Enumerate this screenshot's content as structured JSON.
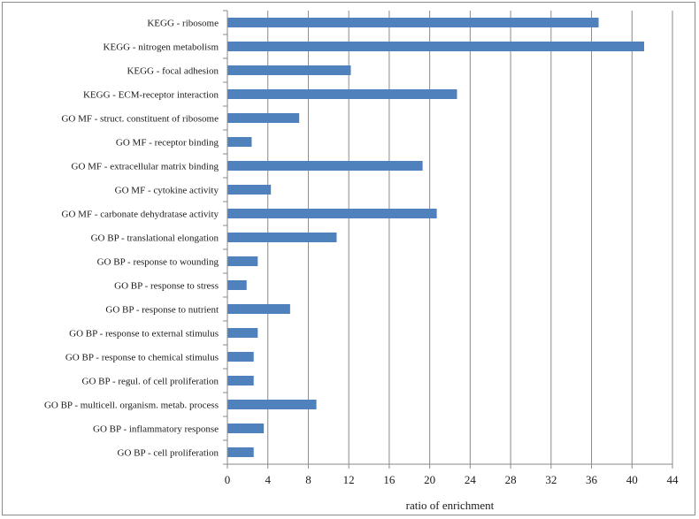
{
  "chart_data": {
    "type": "bar",
    "orientation": "horizontal",
    "title": "",
    "xlabel": "ratio of enrichment",
    "ylabel": "",
    "xlim": [
      0,
      44
    ],
    "x_ticks": [
      0,
      4,
      8,
      12,
      16,
      20,
      24,
      28,
      32,
      36,
      40,
      44
    ],
    "grid": "vertical",
    "legend": "none",
    "bar_color": "#4f81bd",
    "categories": [
      "KEGG - ribosome",
      "KEGG - nitrogen metabolism",
      "KEGG - focal adhesion",
      "KEGG - ECM-receptor interaction",
      "GO MF - struct. constituent of ribosome",
      "GO MF - receptor binding",
      "GO MF - extracellular matrix binding",
      "GO MF - cytokine activity",
      "GO MF - carbonate dehydratase activity",
      "GO BP - translational elongation",
      "GO BP - response to wounding",
      "GO BP - response to stress",
      "GO BP - response to nutrient",
      "GO BP - response to external stimulus",
      "GO  BP - response to chemical stimulus",
      "GO BP - regul. of cell proliferation",
      "GO BP - multicell. organism. metab. process",
      "GO BP - inflammatory response",
      "GO BP - cell proliferation"
    ],
    "values": [
      36.7,
      41.2,
      12.2,
      22.7,
      7.1,
      2.4,
      19.3,
      4.3,
      20.7,
      10.8,
      3.0,
      1.9,
      6.2,
      3.0,
      2.6,
      2.6,
      8.8,
      3.6,
      2.6
    ]
  }
}
